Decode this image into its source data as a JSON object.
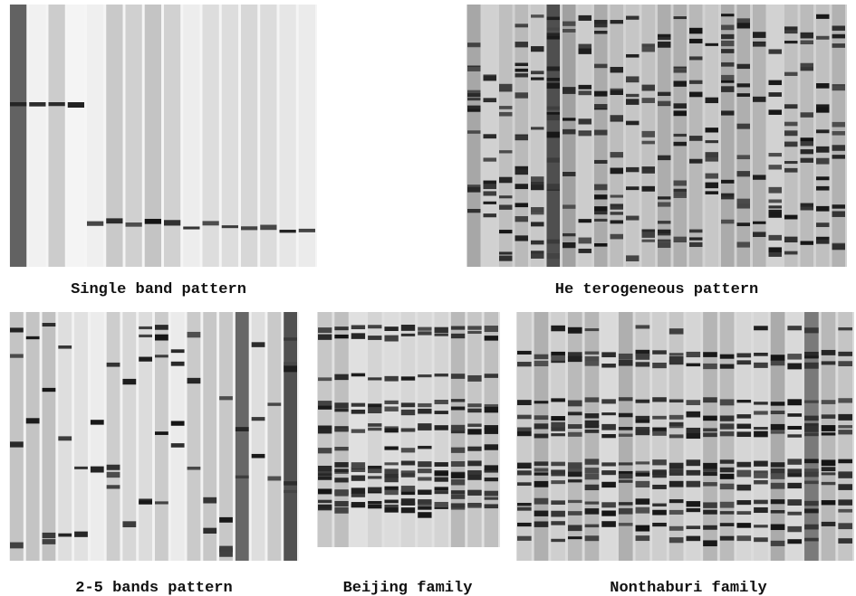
{
  "panels": [
    {
      "caption": "Single band pattern"
    },
    {
      "caption": "He terogeneous pattern"
    },
    {
      "caption": "2-5 bands pattern"
    },
    {
      "caption": "Beijing family"
    },
    {
      "caption": "Nonthaburi family"
    }
  ]
}
